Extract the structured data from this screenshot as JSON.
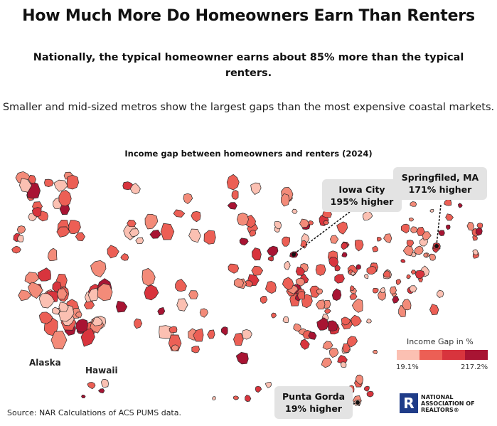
{
  "title": "How Much More Do Homeowners Earn Than Renters",
  "subtitle": "Nationally, the typical homeowner earns about 85% more than the typical renters.",
  "description": "Smaller and mid-sized metros show the largest gaps than the most expensive coastal markets.",
  "map_title": "Income gap between homeowners and renters (2024)",
  "callouts": {
    "iowa_city": {
      "name": "Iowa City",
      "value": "195% higher"
    },
    "springfield": {
      "name": "Springfiled, MA",
      "value": "171% higher"
    },
    "punta_gorda": {
      "name": "Punta Gorda",
      "value": "19% higher"
    }
  },
  "regions": {
    "alaska": "Alaska",
    "hawaii": "Hawaii"
  },
  "legend": {
    "title": "Income Gap in %",
    "min": "19.1%",
    "max": "217.2%",
    "colors": [
      "#fbc0b2",
      "#f38b79",
      "#ec5f55",
      "#d8343d",
      "#a81433"
    ]
  },
  "source": "Source: NAR Calculations of ACS PUMS data.",
  "logo": {
    "mark": "R",
    "line1": "NATIONAL",
    "line2": "ASSOCIATION OF",
    "line3": "REALTORS®"
  }
}
